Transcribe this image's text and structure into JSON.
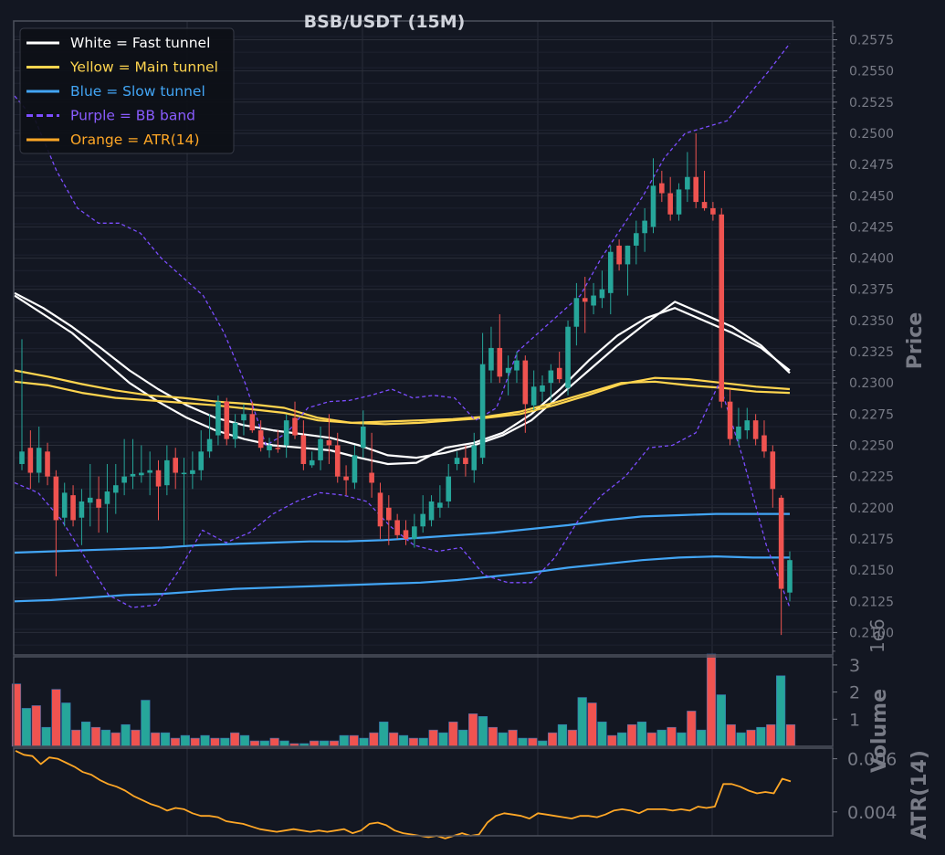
{
  "chart_data": {
    "type": "candlestick",
    "title": "BSB/USDT (15M)",
    "legend": {
      "placement": "top-left",
      "entries": [
        {
          "label": "White = Fast tunnel",
          "color": "#ffffff",
          "style": "solid"
        },
        {
          "label": "Yellow = Main tunnel",
          "color": "#ffd54f",
          "style": "solid"
        },
        {
          "label": "Blue = Slow tunnel",
          "color": "#42a5f5",
          "style": "solid"
        },
        {
          "label": "Purple = BB band",
          "color": "#7c4dff",
          "style": "dashed"
        },
        {
          "label": "Orange = ATR(14)",
          "color": "#ffa726",
          "style": "solid"
        }
      ]
    },
    "colors": {
      "up": "#26a69a",
      "down": "#ef5350",
      "background": "#131722",
      "grid": "#2a2e39",
      "axis_text": "#787b86"
    },
    "price_panel": {
      "ylabel": "Price",
      "ylim": [
        0.2082,
        0.259
      ],
      "ticks": [
        "0.2100",
        "0.2125",
        "0.2150",
        "0.2175",
        "0.2200",
        "0.2225",
        "0.2250",
        "0.2275",
        "0.2300",
        "0.2325",
        "0.2350",
        "0.2375",
        "0.2400",
        "0.2425",
        "0.2450",
        "0.2475",
        "0.2500",
        "0.2525",
        "0.2550",
        "0.2575"
      ],
      "candles": [
        [
          0.2235,
          0.2335,
          0.223,
          0.2245
        ],
        [
          0.2248,
          0.2262,
          0.2215,
          0.2228
        ],
        [
          0.2228,
          0.2265,
          0.222,
          0.2248
        ],
        [
          0.2245,
          0.2252,
          0.2218,
          0.2225
        ],
        [
          0.2225,
          0.223,
          0.2145,
          0.219
        ],
        [
          0.2192,
          0.222,
          0.2185,
          0.2212
        ],
        [
          0.221,
          0.2218,
          0.2185,
          0.219
        ],
        [
          0.2192,
          0.2215,
          0.217,
          0.2205
        ],
        [
          0.2204,
          0.2235,
          0.2185,
          0.2208
        ],
        [
          0.2207,
          0.2225,
          0.218,
          0.22
        ],
        [
          0.2203,
          0.2235,
          0.218,
          0.2213
        ],
        [
          0.2212,
          0.2235,
          0.2195,
          0.2218
        ],
        [
          0.222,
          0.2255,
          0.221,
          0.2225
        ],
        [
          0.2225,
          0.2255,
          0.2215,
          0.2227
        ],
        [
          0.2226,
          0.225,
          0.222,
          0.2228
        ],
        [
          0.2228,
          0.2245,
          0.221,
          0.223
        ],
        [
          0.223,
          0.2238,
          0.219,
          0.2217
        ],
        [
          0.2218,
          0.225,
          0.221,
          0.2238
        ],
        [
          0.224,
          0.2248,
          0.2215,
          0.2228
        ],
        [
          0.2228,
          0.224,
          0.217,
          0.2228
        ],
        [
          0.2227,
          0.2245,
          0.2215,
          0.223
        ],
        [
          0.223,
          0.2262,
          0.2222,
          0.2245
        ],
        [
          0.2245,
          0.2275,
          0.224,
          0.2255
        ],
        [
          0.2258,
          0.229,
          0.225,
          0.2285
        ],
        [
          0.2285,
          0.2288,
          0.225,
          0.2255
        ],
        [
          0.2255,
          0.2275,
          0.2248,
          0.2268
        ],
        [
          0.227,
          0.2283,
          0.2258,
          0.2275
        ],
        [
          0.2275,
          0.2285,
          0.226,
          0.2262
        ],
        [
          0.2262,
          0.227,
          0.2245,
          0.2248
        ],
        [
          0.2246,
          0.2256,
          0.224,
          0.225
        ],
        [
          0.2248,
          0.2262,
          0.2244,
          0.2247
        ],
        [
          0.225,
          0.2275,
          0.224,
          0.227
        ],
        [
          0.2272,
          0.2285,
          0.2255,
          0.2258
        ],
        [
          0.2258,
          0.227,
          0.223,
          0.2235
        ],
        [
          0.2234,
          0.2245,
          0.2232,
          0.2238
        ],
        [
          0.2238,
          0.2265,
          0.223,
          0.2255
        ],
        [
          0.2254,
          0.2275,
          0.2235,
          0.225
        ],
        [
          0.225,
          0.226,
          0.222,
          0.2225
        ],
        [
          0.2225,
          0.2234,
          0.221,
          0.2222
        ],
        [
          0.222,
          0.225,
          0.2215,
          0.2242
        ],
        [
          0.2248,
          0.2278,
          0.224,
          0.2265
        ],
        [
          0.2228,
          0.226,
          0.2208,
          0.222
        ],
        [
          0.2212,
          0.222,
          0.2175,
          0.2185
        ],
        [
          0.22,
          0.221,
          0.217,
          0.219
        ],
        [
          0.219,
          0.2195,
          0.2175,
          0.2178
        ],
        [
          0.2182,
          0.219,
          0.217,
          0.2175
        ],
        [
          0.2175,
          0.2195,
          0.2168,
          0.2185
        ],
        [
          0.2185,
          0.221,
          0.218,
          0.2195
        ],
        [
          0.219,
          0.221,
          0.2185,
          0.2205
        ],
        [
          0.22,
          0.2218,
          0.2192,
          0.2204
        ],
        [
          0.2205,
          0.2235,
          0.22,
          0.2225
        ],
        [
          0.2235,
          0.2245,
          0.223,
          0.224
        ],
        [
          0.224,
          0.225,
          0.2225,
          0.2235
        ],
        [
          0.223,
          0.226,
          0.222,
          0.225
        ],
        [
          0.224,
          0.234,
          0.2235,
          0.2315
        ],
        [
          0.231,
          0.2345,
          0.23,
          0.2328
        ],
        [
          0.2328,
          0.2355,
          0.23,
          0.2305
        ],
        [
          0.2308,
          0.2322,
          0.229,
          0.2312
        ],
        [
          0.231,
          0.2325,
          0.23,
          0.2318
        ],
        [
          0.2318,
          0.2322,
          0.226,
          0.2283
        ],
        [
          0.2282,
          0.231,
          0.2278,
          0.2297
        ],
        [
          0.2293,
          0.2306,
          0.2285,
          0.2298
        ],
        [
          0.23,
          0.2315,
          0.2285,
          0.231
        ],
        [
          0.2312,
          0.2325,
          0.23,
          0.2303
        ],
        [
          0.2296,
          0.235,
          0.229,
          0.2345
        ],
        [
          0.2345,
          0.238,
          0.233,
          0.2368
        ],
        [
          0.2368,
          0.2385,
          0.234,
          0.2365
        ],
        [
          0.2362,
          0.238,
          0.2355,
          0.237
        ],
        [
          0.2368,
          0.239,
          0.236,
          0.2375
        ],
        [
          0.2372,
          0.241,
          0.2355,
          0.2405
        ],
        [
          0.241,
          0.2415,
          0.239,
          0.2395
        ],
        [
          0.2395,
          0.241,
          0.237,
          0.241
        ],
        [
          0.241,
          0.243,
          0.2395,
          0.242
        ],
        [
          0.242,
          0.244,
          0.2405,
          0.243
        ],
        [
          0.2425,
          0.248,
          0.242,
          0.2458
        ],
        [
          0.246,
          0.247,
          0.2445,
          0.2452
        ],
        [
          0.2452,
          0.2465,
          0.243,
          0.2435
        ],
        [
          0.2435,
          0.246,
          0.243,
          0.2455
        ],
        [
          0.2455,
          0.2485,
          0.2445,
          0.2465
        ],
        [
          0.2465,
          0.25,
          0.244,
          0.2445
        ],
        [
          0.2445,
          0.247,
          0.2438,
          0.244
        ],
        [
          0.244,
          0.2445,
          0.243,
          0.2435
        ],
        [
          0.2435,
          0.244,
          0.228,
          0.2285
        ],
        [
          0.2285,
          0.2295,
          0.225,
          0.2255
        ],
        [
          0.2255,
          0.228,
          0.225,
          0.2265
        ],
        [
          0.2262,
          0.228,
          0.2255,
          0.227
        ],
        [
          0.227,
          0.2275,
          0.225,
          0.2255
        ],
        [
          0.2258,
          0.227,
          0.224,
          0.2245
        ],
        [
          0.2245,
          0.225,
          0.22,
          0.2215
        ],
        [
          0.2208,
          0.221,
          0.2098,
          0.2135
        ],
        [
          0.2132,
          0.2165,
          0.2125,
          0.2158
        ]
      ],
      "overlays": [
        {
          "name": "White = Fast tunnel",
          "color": "#ffffff",
          "style": "solid",
          "values": [
            0.237,
            0.2355,
            0.234,
            0.232,
            0.23,
            0.2285,
            0.2272,
            0.2262,
            0.2255,
            0.225,
            0.2248,
            0.2246,
            0.224,
            0.2235,
            0.2236,
            0.2248,
            0.2252,
            0.226,
            0.2275,
            0.2295,
            0.2318,
            0.2338,
            0.2352,
            0.236,
            0.235,
            0.234,
            0.2328,
            0.231
          ]
        },
        {
          "name": "White = Fast tunnel",
          "color": "#ffffff",
          "style": "solid",
          "values": [
            0.2372,
            0.236,
            0.2345,
            0.2328,
            0.231,
            0.2295,
            0.2282,
            0.2272,
            0.2266,
            0.2262,
            0.2259,
            0.2256,
            0.225,
            0.2242,
            0.224,
            0.2244,
            0.225,
            0.2258,
            0.227,
            0.229,
            0.231,
            0.233,
            0.2348,
            0.2365,
            0.2355,
            0.2345,
            0.233,
            0.2308
          ]
        },
        {
          "name": "Yellow = Main tunnel",
          "color": "#ffd54f",
          "style": "solid",
          "values": [
            0.231,
            0.2305,
            0.2299,
            0.2294,
            0.229,
            0.2288,
            0.2285,
            0.2283,
            0.228,
            0.2272,
            0.2268,
            0.2267,
            0.2268,
            0.227,
            0.2272,
            0.2275,
            0.2282,
            0.229,
            0.2299,
            0.2304,
            0.2303,
            0.23,
            0.2297,
            0.2295
          ]
        },
        {
          "name": "Yellow = Main tunnel",
          "color": "#ffd54f",
          "style": "solid",
          "values": [
            0.2301,
            0.2298,
            0.2292,
            0.2288,
            0.2286,
            0.2284,
            0.2282,
            0.2279,
            0.2276,
            0.227,
            0.2268,
            0.2269,
            0.227,
            0.2271,
            0.2273,
            0.2277,
            0.2284,
            0.2292,
            0.23,
            0.2301,
            0.2298,
            0.2296,
            0.2293,
            0.2292
          ]
        },
        {
          "name": "Blue = Slow tunnel",
          "color": "#42a5f5",
          "style": "solid",
          "values": [
            0.2164,
            0.2165,
            0.2166,
            0.2167,
            0.2168,
            0.217,
            0.2171,
            0.2172,
            0.2173,
            0.2173,
            0.2174,
            0.2176,
            0.2178,
            0.218,
            0.2183,
            0.2186,
            0.219,
            0.2193,
            0.2194,
            0.2195,
            0.2195,
            0.2195
          ]
        },
        {
          "name": "Blue = Slow tunnel",
          "color": "#42a5f5",
          "style": "solid",
          "values": [
            0.2125,
            0.2126,
            0.2128,
            0.213,
            0.2131,
            0.2133,
            0.2135,
            0.2136,
            0.2137,
            0.2138,
            0.2139,
            0.214,
            0.2142,
            0.2145,
            0.2148,
            0.2152,
            0.2155,
            0.2158,
            0.216,
            0.2161,
            0.216,
            0.216
          ]
        },
        {
          "name": "Purple = BB band",
          "color": "#7c4dff",
          "style": "dashed",
          "values": [
            0.253,
            0.251,
            0.247,
            0.244,
            0.2428,
            0.2428,
            0.242,
            0.24,
            0.2385,
            0.237,
            0.234,
            0.23,
            0.225,
            0.226,
            0.228,
            0.2285,
            0.2286,
            0.229,
            0.2295,
            0.2288,
            0.229,
            0.2288,
            0.227,
            0.228,
            0.2325,
            0.234,
            0.2355,
            0.237,
            0.24,
            0.2425,
            0.245,
            0.248,
            0.25,
            0.2505,
            0.251,
            0.253,
            0.255,
            0.2572
          ]
        },
        {
          "name": "Purple = BB band",
          "color": "#7c4dff",
          "style": "dashed",
          "values": [
            0.222,
            0.2212,
            0.219,
            0.216,
            0.213,
            0.212,
            0.2122,
            0.215,
            0.2182,
            0.2172,
            0.218,
            0.2195,
            0.2205,
            0.2212,
            0.221,
            0.2205,
            0.2185,
            0.217,
            0.2165,
            0.2168,
            0.2146,
            0.214,
            0.214,
            0.216,
            0.219,
            0.221,
            0.2225,
            0.2248,
            0.225,
            0.226,
            0.23,
            0.224,
            0.217,
            0.212
          ]
        }
      ]
    },
    "volume_panel": {
      "ylabel": "Volume",
      "scale_label": "1e6",
      "ylim": [
        0,
        3.3
      ],
      "ticks": [
        "1",
        "2",
        "3"
      ],
      "values": [
        2.3,
        1.4,
        1.5,
        0.7,
        2.1,
        1.6,
        0.6,
        0.9,
        0.7,
        0.6,
        0.5,
        0.8,
        0.6,
        1.7,
        0.5,
        0.5,
        0.3,
        0.4,
        0.3,
        0.4,
        0.3,
        0.3,
        0.5,
        0.4,
        0.2,
        0.2,
        0.3,
        0.2,
        0.1,
        0.1,
        0.2,
        0.2,
        0.2,
        0.4,
        0.4,
        0.3,
        0.5,
        0.9,
        0.5,
        0.4,
        0.3,
        0.3,
        0.6,
        0.5,
        0.9,
        0.6,
        1.2,
        1.1,
        0.7,
        0.5,
        0.6,
        0.3,
        0.3,
        0.2,
        0.5,
        0.8,
        0.6,
        1.8,
        1.6,
        0.9,
        0.4,
        0.5,
        0.8,
        0.9,
        0.5,
        0.6,
        0.7,
        0.5,
        1.3,
        0.6,
        3.4,
        1.9,
        0.8,
        0.5,
        0.6,
        0.7,
        0.8,
        2.6,
        0.8
      ],
      "colors_up_down": "down-up-alternating"
    },
    "atr_panel": {
      "ylabel": "ATR(14)",
      "ylim": [
        0.0031,
        0.0064
      ],
      "ticks": [
        "0.004",
        "0.006"
      ],
      "values": [
        0.0063,
        0.00615,
        0.0061,
        0.0058,
        0.00605,
        0.006,
        0.00585,
        0.0057,
        0.0055,
        0.0054,
        0.0052,
        0.00505,
        0.00495,
        0.0048,
        0.0046,
        0.00445,
        0.0043,
        0.0042,
        0.00405,
        0.00415,
        0.0041,
        0.00395,
        0.00385,
        0.00385,
        0.0038,
        0.00365,
        0.0036,
        0.00355,
        0.00345,
        0.00335,
        0.0033,
        0.00325,
        0.0033,
        0.00335,
        0.0033,
        0.00325,
        0.0033,
        0.00325,
        0.0033,
        0.00335,
        0.0032,
        0.0033,
        0.00355,
        0.0036,
        0.0035,
        0.0033,
        0.0032,
        0.00315,
        0.0031,
        0.00305,
        0.0031,
        0.003,
        0.0031,
        0.0032,
        0.0031,
        0.00315,
        0.0036,
        0.00385,
        0.00395,
        0.0039,
        0.00385,
        0.00375,
        0.00395,
        0.0039,
        0.00385,
        0.0038,
        0.00375,
        0.00385,
        0.00385,
        0.0038,
        0.0039,
        0.00405,
        0.0041,
        0.00405,
        0.00395,
        0.0041,
        0.0041,
        0.0041,
        0.00405,
        0.0041,
        0.00405,
        0.0042,
        0.00415,
        0.0042,
        0.00505,
        0.00505,
        0.00495,
        0.0048,
        0.0047,
        0.00475,
        0.0047,
        0.00525,
        0.00515
      ]
    }
  }
}
